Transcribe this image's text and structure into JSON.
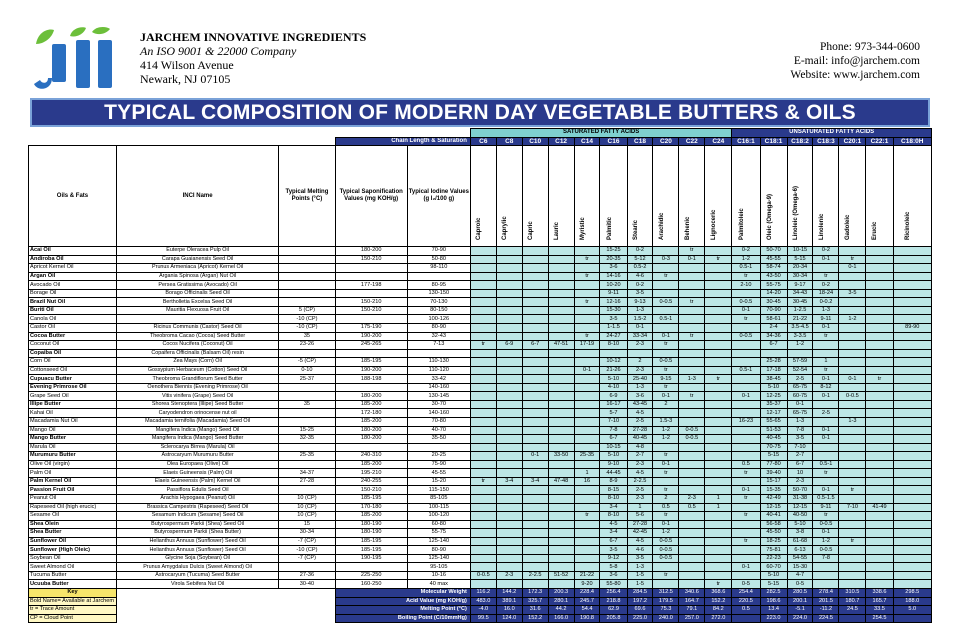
{
  "company": {
    "name": "JARCHEM INNOVATIVE INGREDIENTS",
    "iso": "An ISO 9001 & 22000 Company",
    "address1": "414 Wilson Avenue",
    "address2": "Newark, NJ  07105",
    "logo_text": "Jii"
  },
  "contact": {
    "phone": "Phone: 973-344-0600",
    "email": "E-mail: info@jarchem.com",
    "website": "Website: www.jarchem.com"
  },
  "title": "TYPICAL COMPOSITION OF MODERN DAY VEGETABLE BUTTERS & OILS",
  "colors": {
    "navy": "#2a3a8c",
    "teal": "#7fd0cf",
    "light_teal": "#bde7e6",
    "key_yellow": "#f6e56b",
    "logo_green": "#6cbf3a",
    "logo_blue": "#2a6fc0"
  },
  "headers": {
    "chain": "Chain Length & Saturation",
    "saturated": "SATURATED FATTY ACIDS",
    "unsaturated": "UNSATURATED FATTY ACIDS",
    "oils": "Oils & Fats",
    "inci": "INCI Name",
    "melt": "Typical Melting Points (°C)",
    "sap": "Typical Saponification Values (mg KOH/g)",
    "iod": "Typical Iodine Values (g I₂/100 g)",
    "codes": [
      "C6",
      "C8",
      "C10",
      "C12",
      "C14",
      "C16",
      "C18",
      "C20",
      "C22",
      "C24",
      "C16:1",
      "C18:1",
      "C18:2",
      "C18:3",
      "C20:1",
      "C22:1",
      "C18:0H"
    ],
    "acids": [
      "Caproic",
      "Caprylic",
      "Capric",
      "Lauric",
      "Myristic",
      "Palmitic",
      "Stearic",
      "Arachidic",
      "Behenic",
      "Lignoceric",
      "Palmitoleic",
      "Oleic (Omega-9)",
      "Linoleic (Omega-6)",
      "Linolenic",
      "Gadoleic",
      "Erucic",
      "Ricinoleic"
    ]
  },
  "rows": [
    {
      "n": "Acai Oil",
      "b": true,
      "i": "Euterpe Oleracea Pulp Oil",
      "m": "",
      "s": "180-200",
      "io": "70-90",
      "fa": [
        "",
        "",
        "",
        "",
        "",
        "15-25",
        "0-2",
        "",
        "tr",
        "",
        "0-2",
        "50-70",
        "10-15",
        "0-2",
        "",
        "",
        ""
      ]
    },
    {
      "n": "Andiroba Oil",
      "b": true,
      "i": "Carapa Guaianensis Seed Oil",
      "m": "",
      "s": "150-210",
      "io": "50-80",
      "fa": [
        "",
        "",
        "",
        "",
        "tr",
        "20-35",
        "5-12",
        "0-3",
        "0-1",
        "tr",
        "1-2",
        "45-55",
        "5-15",
        "0-1",
        "tr",
        "",
        ""
      ]
    },
    {
      "n": "Apricot Kernel Oil",
      "b": false,
      "i": "Prunus Armeniaca (Apricot) Kernel Oil",
      "m": "",
      "s": "",
      "io": "98-110",
      "fa": [
        "",
        "",
        "",
        "",
        "",
        "3-6",
        "0.5-2",
        "",
        "",
        "",
        "0.5-1",
        "58-74",
        "20-34",
        "",
        "0-1",
        "",
        ""
      ]
    },
    {
      "n": "Argan Oil",
      "b": true,
      "i": "Argania Spinosa (Argan) Nut Oil",
      "m": "",
      "s": "",
      "io": "",
      "fa": [
        "",
        "",
        "",
        "",
        "tr",
        "14-16",
        "4-6",
        "tr",
        "",
        "",
        "tr",
        "43-50",
        "30-34",
        "tr",
        "",
        "",
        ""
      ]
    },
    {
      "n": "Avocado Oil",
      "b": false,
      "i": "Persea Gratissima (Avocado) Oil",
      "m": "",
      "s": "177-198",
      "io": "80-95",
      "fa": [
        "",
        "",
        "",
        "",
        "",
        "10-20",
        "0-2",
        "",
        "",
        "",
        "2-10",
        "55-75",
        "9-17",
        "0-2",
        "",
        "",
        ""
      ]
    },
    {
      "n": "Borage Oil",
      "b": false,
      "i": "Borago Officinalis Seed Oil",
      "m": "",
      "s": "",
      "io": "130-150",
      "fa": [
        "",
        "",
        "",
        "",
        "",
        "9-11",
        "3-5",
        "",
        "",
        "",
        "",
        "14-20",
        "34-43",
        "18-24",
        "3-5",
        "",
        ""
      ]
    },
    {
      "n": "Brazil Nut Oil",
      "b": true,
      "i": "Bertholletia Excelsa Seed Oil",
      "m": "",
      "s": "150-210",
      "io": "70-130",
      "fa": [
        "",
        "",
        "",
        "",
        "tr",
        "12-16",
        "9-13",
        "0-0.5",
        "tr",
        "",
        "0-0.5",
        "30-45",
        "30-45",
        "0-0.2",
        "",
        "",
        ""
      ]
    },
    {
      "n": "Buriti Oil",
      "b": true,
      "i": "Mauritia Flexuosa Fruit Oil",
      "m": "5 (CP)",
      "s": "150-210",
      "io": "80-150",
      "fa": [
        "",
        "",
        "",
        "",
        "",
        "15-30",
        "1-3",
        "",
        "",
        "",
        "0-1",
        "70-90",
        "1-2.5",
        "1-3",
        "",
        "",
        ""
      ]
    },
    {
      "n": "Canola Oil",
      "b": false,
      "i": "",
      "m": "-10 (CP)",
      "s": "",
      "io": "100-126",
      "fa": [
        "",
        "",
        "",
        "",
        "",
        "3-5",
        "1.5-2",
        "0.5-1",
        "",
        "",
        "tr",
        "58-61",
        "21-22",
        "9-11",
        "1-2",
        "",
        ""
      ]
    },
    {
      "n": "Castor Oil",
      "b": false,
      "i": "Ricinus Communis (Castor) Seed Oil",
      "m": "-10 (CP)",
      "s": "175-190",
      "io": "80-90",
      "fa": [
        "",
        "",
        "",
        "",
        "",
        "1-1.5",
        "0-1",
        "",
        "",
        "",
        "",
        "2-4",
        "3.5-4.5",
        "0-1",
        "",
        "",
        "89-90"
      ]
    },
    {
      "n": "Cocoa Butter",
      "b": true,
      "i": "Theobroma Cacao (Cocoa) Seed Butter",
      "m": "35",
      "s": "190-200",
      "io": "32-43",
      "fa": [
        "",
        "",
        "",
        "",
        "tr",
        "24-27",
        "33-34",
        "0-1",
        "tr",
        "",
        "0-0.5",
        "34-36",
        "3-3.5",
        "tr",
        "",
        "",
        ""
      ]
    },
    {
      "n": "Coconut Oil",
      "b": false,
      "i": "Cocos Nucifera (Coconut) Oil",
      "m": "23-26",
      "s": "245-265",
      "io": "7-13",
      "fa": [
        "tr",
        "6-9",
        "6-7",
        "47-51",
        "17-19",
        "8-10",
        "2-3",
        "tr",
        "",
        "",
        "",
        "6-7",
        "1-2",
        "",
        "",
        "",
        ""
      ]
    },
    {
      "n": "Copaiba Oil",
      "b": true,
      "i": "Copaifera Officinalis (Balsam Oil) resin",
      "m": "",
      "s": "",
      "io": "",
      "fa": [
        "",
        "",
        "",
        "",
        "",
        "",
        "",
        "",
        "",
        "",
        "",
        "",
        "",
        "",
        "",
        "",
        ""
      ]
    },
    {
      "n": "Corn Oil",
      "b": false,
      "i": "Zea Mays (Corn) Oil",
      "m": "-5 (CP)",
      "s": "185-195",
      "io": "110-130",
      "fa": [
        "",
        "",
        "",
        "",
        "",
        "10-12",
        "2",
        "0-0.5",
        "",
        "",
        "",
        "25-28",
        "57-59",
        "1",
        "",
        "",
        ""
      ]
    },
    {
      "n": "Cottonseed Oil",
      "b": false,
      "i": "Gossypium Herbaceum (Cotton) Seed Oil",
      "m": "0-10",
      "s": "190-200",
      "io": "110-120",
      "fa": [
        "",
        "",
        "",
        "",
        "0-1",
        "21-26",
        "2-3",
        "tr",
        "",
        "",
        "0.5-1",
        "17-18",
        "52-54",
        "tr",
        "",
        "",
        ""
      ]
    },
    {
      "n": "Cupuacu Butter",
      "b": true,
      "i": "Theobroma Grandiflorum Seed Butter",
      "m": "25-37",
      "s": "188-198",
      "io": "33-42",
      "fa": [
        "",
        "",
        "",
        "",
        "",
        "5-10",
        "25-40",
        "9-15",
        "1-3",
        "tr",
        "",
        "38-45",
        "2-5",
        "0-1",
        "0-1",
        "tr",
        ""
      ]
    },
    {
      "n": "Evening Primrose Oil",
      "b": true,
      "i": "Oenothera Biennis (Evening Primrose) Oil",
      "m": "",
      "s": "",
      "io": "140-160",
      "fa": [
        "",
        "",
        "",
        "",
        "",
        "4-10",
        "1-3",
        "tr",
        "",
        "",
        "",
        "5-10",
        "65-75",
        "8-12",
        "",
        "",
        ""
      ]
    },
    {
      "n": "Grape Seed Oil",
      "b": false,
      "i": "Vitis vinifera (Grape) Seed Oil",
      "m": "",
      "s": "180-200",
      "io": "130-145",
      "fa": [
        "",
        "",
        "",
        "",
        "",
        "6-9",
        "3-6",
        "0-1",
        "tr",
        "",
        "0-1",
        "12-25",
        "60-75",
        "0-1",
        "0-0.5",
        "",
        ""
      ]
    },
    {
      "n": "Illipe Butter",
      "b": true,
      "i": "Shorea Stenoptera (Illipe) Seed Butter",
      "m": "35",
      "s": "185-200",
      "io": "30-70",
      "fa": [
        "",
        "",
        "",
        "",
        "",
        "16-17",
        "43-45",
        "2",
        "",
        "",
        "",
        "35-37",
        "0-1",
        "",
        "",
        "",
        ""
      ]
    },
    {
      "n": "Kahai Oil",
      "b": false,
      "i": "Caryodendron orinocense nut oil",
      "m": "",
      "s": "172-180",
      "io": "140-160",
      "fa": [
        "",
        "",
        "",
        "",
        "",
        "5-7",
        "4-5",
        "",
        "",
        "",
        "",
        "12-17",
        "65-75",
        "2-5",
        "",
        "",
        ""
      ]
    },
    {
      "n": "Macadamia Nut Oil",
      "b": false,
      "i": "Macadamia ternifolia (Macadamia) Seed Oil",
      "m": "",
      "s": "185-200",
      "io": "70-80",
      "fa": [
        "",
        "",
        "",
        "",
        "",
        "7-10",
        "2-5",
        "1.5-3",
        "",
        "",
        "16-23",
        "55-65",
        "1-3",
        "",
        "1-3",
        "",
        ""
      ]
    },
    {
      "n": "Mango Oil",
      "b": false,
      "i": "Mangifera Indica (Mango) Seed Oil",
      "m": "15-25",
      "s": "180-200",
      "io": "40-70",
      "fa": [
        "",
        "",
        "",
        "",
        "",
        "7-8",
        "27-28",
        "1-2",
        "0-0.5",
        "",
        "",
        "51-53",
        "7-8",
        "0-1",
        "",
        "",
        ""
      ]
    },
    {
      "n": "Mango Butter",
      "b": true,
      "i": "Mangifera Indica (Mango) Seed Butter",
      "m": "32-35",
      "s": "180-200",
      "io": "35-50",
      "fa": [
        "",
        "",
        "",
        "",
        "",
        "6-7",
        "40-45",
        "1-2",
        "0-0.5",
        "",
        "",
        "40-45",
        "3-5",
        "0-1",
        "",
        "",
        ""
      ]
    },
    {
      "n": "Marula Oil",
      "b": false,
      "i": "Sclerocarya Birrea (Marula) Oil",
      "m": "",
      "s": "",
      "io": "",
      "fa": [
        "",
        "",
        "",
        "",
        "",
        "10-15",
        "4-8",
        "",
        "",
        "",
        "",
        "70-75",
        "7-10",
        "",
        "",
        "",
        ""
      ]
    },
    {
      "n": "Murumuru Butter",
      "b": true,
      "i": "Astrocaryum Murumuru Butter",
      "m": "25-35",
      "s": "240-310",
      "io": "20-25",
      "fa": [
        "",
        "",
        "0-1",
        "33-50",
        "25-35",
        "5-10",
        "2-7",
        "tr",
        "",
        "",
        "",
        "5-15",
        "2-7",
        "",
        "",
        "",
        ""
      ]
    },
    {
      "n": "Olive Oil (virgin)",
      "b": false,
      "i": "Olea Europaea (Olive) Oil",
      "m": "",
      "s": "185-200",
      "io": "75-90",
      "fa": [
        "",
        "",
        "",
        "",
        "",
        "9-10",
        "2-3",
        "0-1",
        "",
        "",
        "0.5",
        "77-80",
        "6-7",
        "0.5-1",
        "",
        "",
        ""
      ]
    },
    {
      "n": "Palm Oil",
      "b": false,
      "i": "Elaeis Guineensis (Palm) Oil",
      "m": "34-37",
      "s": "195-210",
      "io": "45-55",
      "fa": [
        "",
        "",
        "",
        "",
        "1",
        "44-45",
        "4-5",
        "tr",
        "",
        "",
        "tr",
        "39-40",
        "10",
        "tr",
        "",
        "",
        ""
      ]
    },
    {
      "n": "Palm Kernel Oil",
      "b": true,
      "i": "Elaeis Guineensis (Palm) Kernel Oil",
      "m": "27-28",
      "s": "240-255",
      "io": "15-20",
      "fa": [
        "tr",
        "3-4",
        "3-4",
        "47-48",
        "16",
        "8-9",
        "2-2.5",
        "",
        "",
        "",
        "",
        "15-17",
        "2-3",
        "",
        "",
        "",
        ""
      ]
    },
    {
      "n": "Passion Fruit Oil",
      "b": true,
      "i": "Passiflora Edulis Seed Oil",
      "m": "",
      "s": "150-210",
      "io": "115-150",
      "fa": [
        "",
        "",
        "",
        "",
        "",
        "8-15",
        "2-5",
        "tr",
        "",
        "",
        "0-1",
        "15-35",
        "50-70",
        "0-1",
        "tr",
        "",
        ""
      ]
    },
    {
      "n": "Peanut Oil",
      "b": false,
      "i": "Arachis Hypogaea (Peanut) Oil",
      "m": "10 (CP)",
      "s": "185-195",
      "io": "85-105",
      "fa": [
        "",
        "",
        "",
        "",
        "",
        "8-10",
        "2-3",
        "2",
        "2-3",
        "1",
        "tr",
        "42-49",
        "31-38",
        "0.5-1.5",
        "",
        "",
        ""
      ]
    },
    {
      "n": "Rapeseed Oil (high erucic)",
      "b": false,
      "i": "Brassica Campestris (Rapeseed) Seed Oil",
      "m": "10 (CP)",
      "s": "170-180",
      "io": "100-115",
      "fa": [
        "",
        "",
        "",
        "",
        "",
        "3-4",
        "1",
        "0.5",
        "0.5",
        "1",
        "",
        "12-15",
        "12-15",
        "9-11",
        "7-10",
        "41-49",
        ""
      ]
    },
    {
      "n": "Sesame Oil",
      "b": false,
      "i": "Sesamum Indicum (Sesame) Seed Oil",
      "m": "10 (CP)",
      "s": "185-200",
      "io": "100-120",
      "fa": [
        "",
        "",
        "",
        "",
        "tr",
        "8-10",
        "5-6",
        "tr",
        "",
        "",
        "tr",
        "40-41",
        "40-50",
        "tr",
        "",
        "",
        ""
      ]
    },
    {
      "n": "Shea Olein",
      "b": true,
      "i": "Butyrospermum Parkii (Shea) Seed Oil",
      "m": "15",
      "s": "180-190",
      "io": "60-80",
      "fa": [
        "",
        "",
        "",
        "",
        "",
        "4-5",
        "27-28",
        "0-1",
        "",
        "",
        "",
        "56-58",
        "5-10",
        "0-0.5",
        "",
        "",
        ""
      ]
    },
    {
      "n": "Shea Butter",
      "b": true,
      "i": "Butyrospermum Parkii (Shea Butter)",
      "m": "30-34",
      "s": "180-190",
      "io": "55-75",
      "fa": [
        "",
        "",
        "",
        "",
        "",
        "3-4",
        "42-45",
        "1-2",
        "",
        "",
        "",
        "45-50",
        "3-8",
        "0-1",
        "",
        "",
        ""
      ]
    },
    {
      "n": "Sunflower Oil",
      "b": true,
      "i": "Helianthus Annuus (Sunflower) Seed Oil",
      "m": "-7 (CP)",
      "s": "185-195",
      "io": "125-140",
      "fa": [
        "",
        "",
        "",
        "",
        "",
        "6-7",
        "4-5",
        "0-0.5",
        "",
        "",
        "tr",
        "18-25",
        "61-68",
        "1-2",
        "tr",
        "",
        ""
      ]
    },
    {
      "n": "Sunflower (High Oleic)",
      "b": true,
      "i": "Helianthus Annuus (Sunflower) Seed Oil",
      "m": "-10 (CP)",
      "s": "185-195",
      "io": "80-90",
      "fa": [
        "",
        "",
        "",
        "",
        "",
        "3-5",
        "4-6",
        "0-0.5",
        "",
        "",
        "",
        "75-81",
        "6-13",
        "0-0.5",
        "",
        "",
        ""
      ]
    },
    {
      "n": "Soybean Oil",
      "b": false,
      "i": "Glycine Soja (Soybean) Oil",
      "m": "-7 (CP)",
      "s": "190-195",
      "io": "125-140",
      "fa": [
        "",
        "",
        "",
        "",
        "",
        "9-12",
        "3-5",
        "0-0.5",
        "",
        "",
        "",
        "22-23",
        "54-55",
        "7-8",
        "",
        "",
        ""
      ]
    },
    {
      "n": "Sweet Almond Oil",
      "b": false,
      "i": "Prunus Amygdalus Dulcis (Sweet Almond) Oil",
      "m": "",
      "s": "",
      "io": "95-105",
      "fa": [
        "",
        "",
        "",
        "",
        "",
        "5-8",
        "1-3",
        "",
        "",
        "",
        "0-1",
        "60-70",
        "15-30",
        "",
        "",
        "",
        ""
      ]
    },
    {
      "n": "Tucuma Butter",
      "b": false,
      "i": "Astrocaryum (Tucuma) Seed Butter",
      "m": "27-36",
      "s": "225-250",
      "io": "10-16",
      "fa": [
        "0-0.5",
        "2-3",
        "2-2.5",
        "51-52",
        "21-22",
        "3-6",
        "1-5",
        "tr",
        "",
        "",
        "",
        "5-10",
        "4-7",
        "",
        "",
        "",
        ""
      ]
    },
    {
      "n": "Ucuuba Butter",
      "b": true,
      "i": "Virola Sebifera Nut Oil",
      "m": "30-40",
      "s": "160-250",
      "io": "40 max",
      "fa": [
        "",
        "",
        "",
        "",
        "9-20",
        "55-80",
        "1-5",
        "",
        "",
        "tr",
        "0-5",
        "5-15",
        "0-5",
        "",
        "",
        "",
        ""
      ]
    }
  ],
  "footer": {
    "mw_label": "Molecular Weight",
    "mw": [
      "116.2",
      "144.2",
      "172.3",
      "200.3",
      "228.4",
      "256.4",
      "284.5",
      "312.5",
      "340.6",
      "368.6",
      "254.4",
      "282.5",
      "280.5",
      "278.4",
      "310.5",
      "338.6",
      "298.5"
    ],
    "av_label": "Acid Value (mg KOH/g)",
    "av": [
      "483.0",
      "389.1",
      "325.7",
      "280.1",
      "245.7",
      "218.8",
      "197.2",
      "179.5",
      "164.7",
      "152.2",
      "220.5",
      "198.6",
      "200.1",
      "201.5",
      "180.7",
      "165.7",
      "188.0"
    ],
    "mp_label": "Melting Point (°C)",
    "mp": [
      "-4.0",
      "16.0",
      "31.6",
      "44.2",
      "54.4",
      "62.9",
      "69.6",
      "75.3",
      "79.1",
      "84.2",
      "0.5",
      "13.4",
      "-5.1",
      "-11.2",
      "24.5",
      "33.5",
      "5.0"
    ],
    "bp_label": "Boiling Point (C/10mmHg)",
    "bp": [
      "99.5",
      "124.0",
      "152.2",
      "166.0",
      "190.8",
      "205.8",
      "225.0",
      "240.0",
      "257.0",
      "272.0",
      "",
      "223.0",
      "224.0",
      "224.5",
      "",
      "254.5",
      ""
    ]
  },
  "key": {
    "title": "Key",
    "lines": [
      "Bold Name= Available at Jarchem",
      "tr = Trace Amount",
      "CP = Cloud Point"
    ]
  }
}
